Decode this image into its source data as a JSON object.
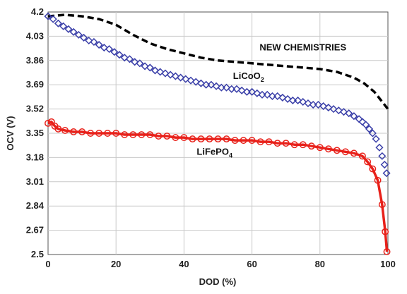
{
  "chart_data": {
    "type": "scatter",
    "xlabel": "DOD (%)",
    "ylabel": "OCV (V)",
    "xlim": [
      0,
      100
    ],
    "ylim": [
      2.5,
      4.2
    ],
    "x_ticks": [
      "0",
      "20",
      "40",
      "60",
      "80",
      "100"
    ],
    "y_ticks": [
      "2.5",
      "2.67",
      "2.84",
      "3.01",
      "3.18",
      "3.35",
      "3.52",
      "3.69",
      "3.86",
      "4.03",
      "4.2"
    ],
    "grid": true,
    "series": [
      {
        "name": "NEW CHEMISTRIES",
        "style": "dashed-line",
        "color": "#000000",
        "x": [
          0,
          5,
          10,
          15,
          20,
          25,
          30,
          35,
          40,
          45,
          50,
          55,
          60,
          65,
          70,
          75,
          80,
          85,
          90,
          93,
          96,
          98,
          100
        ],
        "y": [
          4.17,
          4.18,
          4.17,
          4.15,
          4.11,
          4.04,
          3.98,
          3.94,
          3.91,
          3.88,
          3.86,
          3.85,
          3.84,
          3.83,
          3.82,
          3.81,
          3.8,
          3.78,
          3.74,
          3.7,
          3.64,
          3.58,
          3.52
        ]
      },
      {
        "name": "LiCoO",
        "name_subscript": "2",
        "style": "diamond-markers",
        "color": "#3a3fa8",
        "x": [
          0,
          1.5,
          3,
          4.5,
          6,
          7.5,
          9,
          10.5,
          12,
          13.5,
          15,
          16.5,
          18,
          19.5,
          21,
          22.5,
          24,
          25.5,
          27,
          28.5,
          30,
          31.5,
          33,
          34.5,
          36,
          37.5,
          39,
          40.5,
          42,
          43.5,
          45,
          46.5,
          48,
          49.5,
          51,
          52.5,
          54,
          55.5,
          57,
          58.5,
          60,
          61.5,
          63,
          64.5,
          66,
          67.5,
          69,
          70.5,
          72,
          73.5,
          75,
          76.5,
          78,
          79.5,
          81,
          82.5,
          84,
          85.5,
          87,
          88.5,
          90,
          91.5,
          92.5,
          93.5,
          94.5,
          95.5,
          96.5,
          97.5,
          98.3,
          99,
          99.6
        ],
        "y": [
          4.17,
          4.15,
          4.12,
          4.1,
          4.08,
          4.06,
          4.04,
          4.02,
          4.0,
          3.99,
          3.97,
          3.95,
          3.94,
          3.92,
          3.9,
          3.88,
          3.87,
          3.85,
          3.84,
          3.82,
          3.81,
          3.79,
          3.78,
          3.77,
          3.76,
          3.75,
          3.74,
          3.73,
          3.72,
          3.71,
          3.7,
          3.69,
          3.69,
          3.68,
          3.67,
          3.67,
          3.66,
          3.66,
          3.65,
          3.64,
          3.64,
          3.63,
          3.62,
          3.62,
          3.61,
          3.61,
          3.6,
          3.59,
          3.58,
          3.58,
          3.57,
          3.56,
          3.55,
          3.55,
          3.54,
          3.53,
          3.52,
          3.51,
          3.5,
          3.49,
          3.47,
          3.45,
          3.43,
          3.41,
          3.38,
          3.35,
          3.31,
          3.25,
          3.19,
          3.13,
          3.07
        ]
      },
      {
        "name": "LiFePO",
        "name_subscript": "4",
        "style": "circle-markers-with-line",
        "color": "#e8211a",
        "x": [
          0,
          1,
          2,
          3,
          5,
          7.5,
          10,
          12.5,
          15,
          17.5,
          20,
          22.5,
          25,
          27.5,
          30,
          32.5,
          35,
          37.5,
          40,
          42.5,
          45,
          47.5,
          50,
          52.5,
          55,
          57.5,
          60,
          62.5,
          65,
          67.5,
          70,
          72.5,
          75,
          77.5,
          80,
          82.5,
          85,
          87.5,
          90,
          92.5,
          94,
          95.5,
          97,
          98.3,
          99.2,
          99.7
        ],
        "y": [
          3.42,
          3.43,
          3.4,
          3.38,
          3.37,
          3.36,
          3.36,
          3.35,
          3.35,
          3.35,
          3.35,
          3.34,
          3.34,
          3.34,
          3.34,
          3.33,
          3.33,
          3.32,
          3.32,
          3.31,
          3.31,
          3.31,
          3.31,
          3.31,
          3.3,
          3.3,
          3.3,
          3.29,
          3.29,
          3.28,
          3.28,
          3.27,
          3.27,
          3.26,
          3.25,
          3.24,
          3.23,
          3.22,
          3.21,
          3.19,
          3.15,
          3.1,
          3.02,
          2.85,
          2.66,
          2.52
        ]
      }
    ],
    "annotations": [
      {
        "text": "NEW CHEMISTRIES",
        "x": 75,
        "y": 3.93
      },
      {
        "text": "LiCoO",
        "subscript": "2",
        "x": 59,
        "y": 3.73
      },
      {
        "text": "LiFePO",
        "subscript": "4",
        "x": 49,
        "y": 3.2
      }
    ]
  }
}
